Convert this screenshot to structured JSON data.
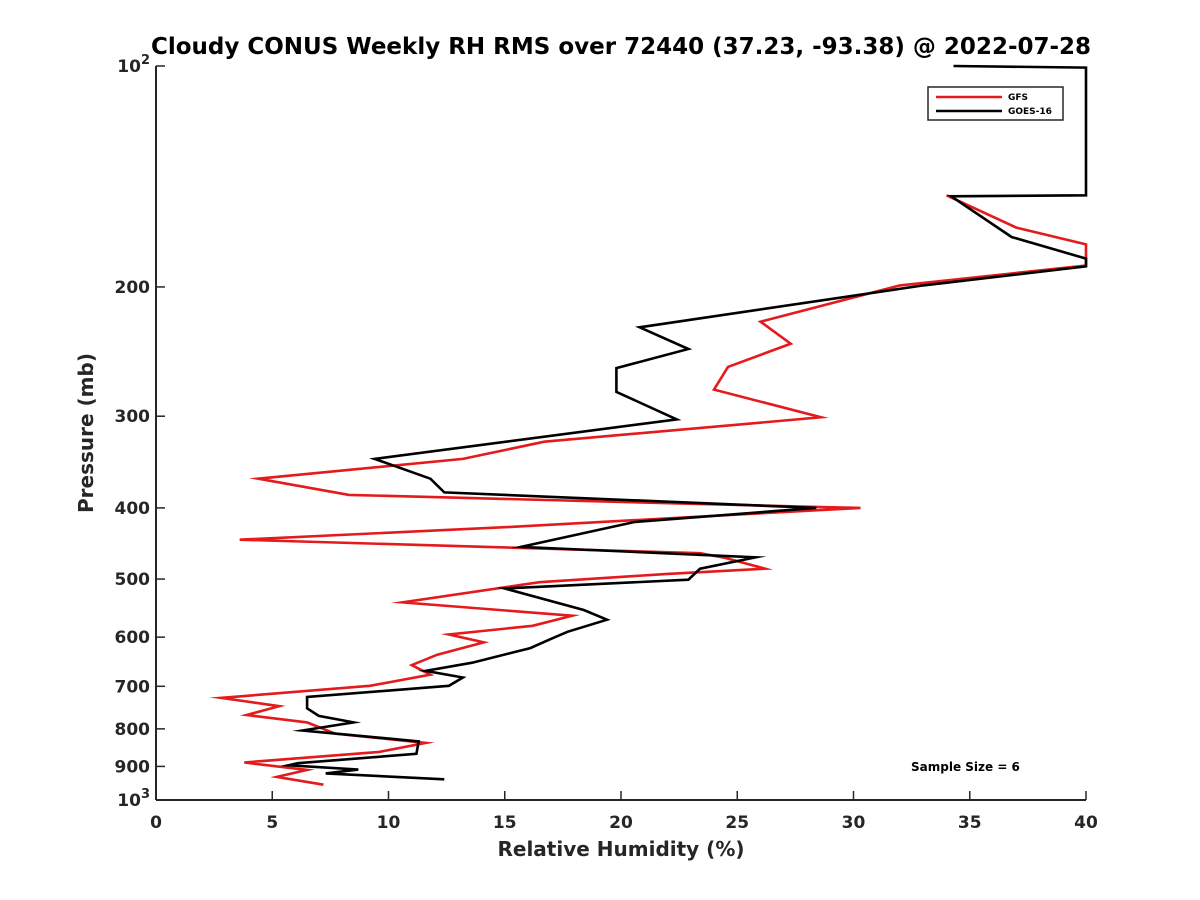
{
  "chart_data": {
    "type": "line",
    "title": "Cloudy CONUS Weekly RH RMS over 72440 (37.23, -93.38) @ 2022-07-28",
    "xlabel": "Relative Humidity (%)",
    "ylabel": "Pressure (mb)",
    "xlim": [
      0,
      40
    ],
    "ylim": [
      100,
      1000
    ],
    "y_scale": "log",
    "y_reversed": true,
    "x_ticks": [
      "0",
      "5",
      "10",
      "15",
      "20",
      "25",
      "30",
      "35",
      "40"
    ],
    "y_ticks": [
      {
        "value": 100,
        "base": "10",
        "exp": "2"
      },
      {
        "value": 200,
        "label": "200"
      },
      {
        "value": 300,
        "label": "300"
      },
      {
        "value": 400,
        "label": "400"
      },
      {
        "value": 500,
        "label": "500"
      },
      {
        "value": 600,
        "label": "600"
      },
      {
        "value": 700,
        "label": "700"
      },
      {
        "value": 800,
        "label": "800"
      },
      {
        "value": 900,
        "label": "900"
      },
      {
        "value": 1000,
        "base": "10",
        "exp": "3"
      }
    ],
    "grid": false,
    "legend_position": "top-right",
    "annotation": "Sample Size = 6",
    "series": [
      {
        "name": "GFS",
        "color": "#e41a1c",
        "points": [
          [
            34.0,
            150
          ],
          [
            37,
            166
          ],
          [
            40,
            175
          ],
          [
            40,
            187
          ],
          [
            32,
            199
          ],
          [
            26.0,
            223
          ],
          [
            27.3,
            239
          ],
          [
            24.6,
            257
          ],
          [
            24.0,
            276
          ],
          [
            28.6,
            301
          ],
          [
            16.7,
            325
          ],
          [
            13.2,
            343
          ],
          [
            4.4,
            365
          ],
          [
            8.3,
            384
          ],
          [
            28.6,
            399
          ],
          [
            30.3,
            400
          ],
          [
            15.0,
            425
          ],
          [
            3.6,
            442
          ],
          [
            23.4,
            461
          ],
          [
            24.5,
            468
          ],
          [
            26.2,
            484
          ],
          [
            22.0,
            492
          ],
          [
            16.5,
            505
          ],
          [
            10.6,
            538
          ],
          [
            17.9,
            561
          ],
          [
            16.2,
            579
          ],
          [
            12.6,
            595
          ],
          [
            14.1,
            610
          ],
          [
            12.1,
            634
          ],
          [
            11.0,
            655
          ],
          [
            11.8,
            675
          ],
          [
            9.2,
            699
          ],
          [
            2.8,
            726
          ],
          [
            5.3,
            745
          ],
          [
            3.9,
            766
          ],
          [
            6.5,
            784
          ],
          [
            7.7,
            812
          ],
          [
            11.6,
            836
          ],
          [
            9.6,
            860
          ],
          [
            3.8,
            889
          ],
          [
            6.5,
            910
          ],
          [
            5.2,
            930
          ],
          [
            7.2,
            953
          ]
        ]
      },
      {
        "name": "GOES-16",
        "color": "#000000",
        "points": [
          [
            34.3,
            100
          ],
          [
            40,
            100.5
          ],
          [
            40,
            150
          ],
          [
            34.2,
            150.5
          ],
          [
            36.8,
            171
          ],
          [
            40,
            183
          ],
          [
            40,
            187.5
          ],
          [
            33,
            199
          ],
          [
            20.8,
            227
          ],
          [
            22.9,
            243
          ],
          [
            19.8,
            258
          ],
          [
            19.8,
            278
          ],
          [
            22.4,
            303
          ],
          [
            9.4,
            343
          ],
          [
            11.8,
            365
          ],
          [
            12.4,
            381
          ],
          [
            28.4,
            400
          ],
          [
            20.6,
            418
          ],
          [
            15.7,
            452
          ],
          [
            25.8,
            467
          ],
          [
            23.4,
            484
          ],
          [
            22.9,
            501
          ],
          [
            15.0,
            515
          ],
          [
            18.4,
            551
          ],
          [
            19.4,
            568
          ],
          [
            17.7,
            590
          ],
          [
            16.9,
            605
          ],
          [
            16.1,
            621
          ],
          [
            13.6,
            650
          ],
          [
            11.6,
            667
          ],
          [
            13.2,
            681
          ],
          [
            12.6,
            699
          ],
          [
            6.5,
            724
          ],
          [
            6.5,
            750
          ],
          [
            7.0,
            768
          ],
          [
            8.5,
            784
          ],
          [
            6.3,
            804
          ],
          [
            11.3,
            832
          ],
          [
            11.2,
            865
          ],
          [
            6.1,
            891
          ],
          [
            5.7,
            897
          ],
          [
            8.7,
            909
          ],
          [
            7.3,
            920
          ],
          [
            12.4,
            937
          ]
        ]
      }
    ]
  }
}
